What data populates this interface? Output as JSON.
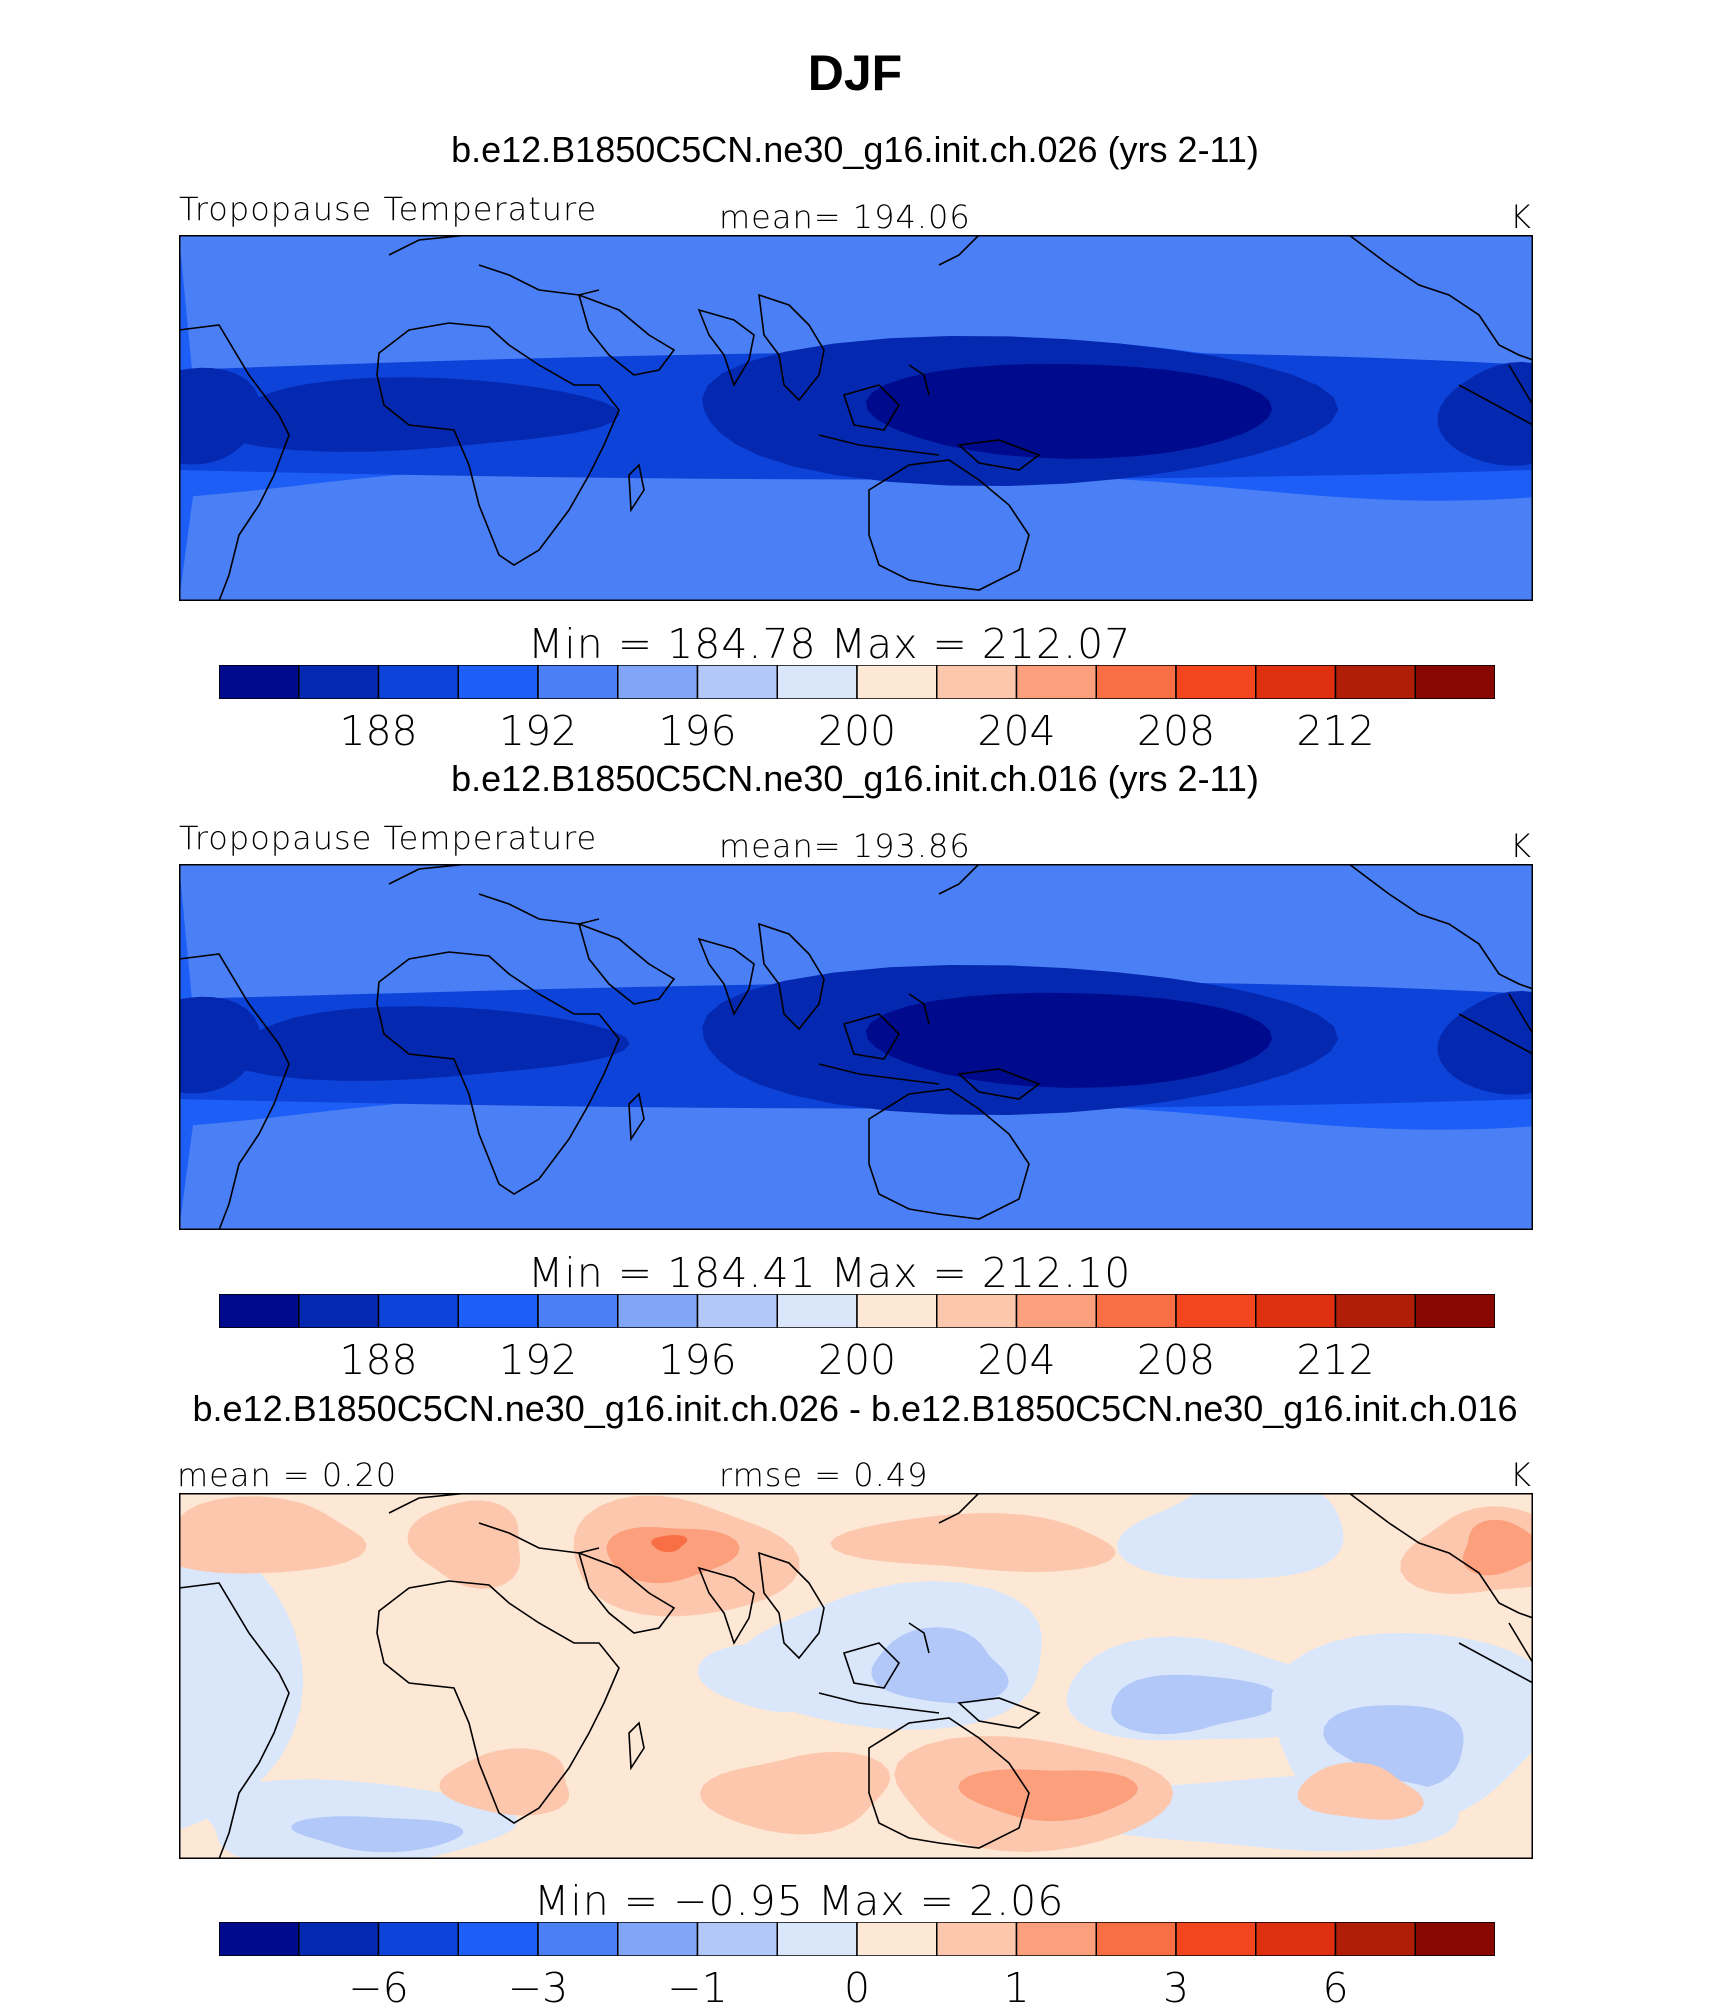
{
  "figure": {
    "title": "DJF",
    "panels": [
      {
        "id": "case1",
        "case_title": "b.e12.B1850C5CN.ne30_g16.init.ch.026 (yrs 2-11)",
        "left_label": "Tropopause Temperature",
        "center_label": "mean= 194.06",
        "units": "K",
        "minmax": "Min = 184.78 Max = 212.07"
      },
      {
        "id": "case2",
        "case_title": "b.e12.B1850C5CN.ne30_g16.init.ch.016 (yrs 2-11)",
        "left_label": "Tropopause Temperature",
        "center_label": "mean= 193.86",
        "units": "K",
        "minmax": "Min = 184.41 Max = 212.10"
      },
      {
        "id": "diff",
        "case_title": "b.e12.B1850C5CN.ne30_g16.init.ch.026 - b.e12.B1850C5CN.ne30_g16.init.ch.016",
        "left_label": "mean =    0.20",
        "center_label": "rmse =    0.49",
        "units": "K",
        "minmax": "Min =   −0.95 Max =    2.06"
      }
    ],
    "colorbar_colors": [
      "#000a8c",
      "#0428b0",
      "#0d43d8",
      "#1d5ef6",
      "#4a7ff6",
      "#82a6f7",
      "#b2c8f8",
      "#dae6fa",
      "#fde8d6",
      "#fcc7ad",
      "#fb9f7d",
      "#f96f45",
      "#f3461e",
      "#de2f0f",
      "#b01e08",
      "#880700"
    ],
    "colorbar_ticks_abs": [
      "188",
      "192",
      "196",
      "200",
      "204",
      "208",
      "212"
    ],
    "colorbar_ticks_diff": [
      "−6",
      "−3",
      "−1",
      "0",
      "1",
      "3",
      "6"
    ]
  },
  "chart_data": [
    {
      "type": "heatmap",
      "title": "b.e12.B1850C5CN.ne30_g16.init.ch.026 (yrs 2-11)",
      "variable": "Tropopause Temperature",
      "units": "K",
      "mean": 194.06,
      "min": 184.78,
      "max": 212.07,
      "contour_levels": [
        186,
        188,
        190,
        192,
        194,
        196,
        198,
        200,
        202,
        204,
        206,
        208,
        210,
        212,
        214
      ],
      "colorbar_tick_labels": [
        188,
        192,
        196,
        200,
        204,
        208,
        212
      ]
    },
    {
      "type": "heatmap",
      "title": "b.e12.B1850C5CN.ne30_g16.init.ch.016 (yrs 2-11)",
      "variable": "Tropopause Temperature",
      "units": "K",
      "mean": 193.86,
      "min": 184.41,
      "max": 212.1,
      "contour_levels": [
        186,
        188,
        190,
        192,
        194,
        196,
        198,
        200,
        202,
        204,
        206,
        208,
        210,
        212,
        214
      ],
      "colorbar_tick_labels": [
        188,
        192,
        196,
        200,
        204,
        208,
        212
      ]
    },
    {
      "type": "heatmap",
      "title": "b.e12.B1850C5CN.ne30_g16.init.ch.026 - b.e12.B1850C5CN.ne30_g16.init.ch.016",
      "units": "K",
      "mean": 0.2,
      "rmse": 0.49,
      "min": -0.95,
      "max": 2.06,
      "contour_levels": [
        -8,
        -6,
        -4,
        -3,
        -2,
        -1,
        -0.5,
        0,
        0.5,
        1,
        2,
        3,
        4,
        6,
        8
      ],
      "colorbar_tick_labels": [
        -6,
        -3,
        -1,
        0,
        1,
        3,
        6
      ]
    }
  ]
}
